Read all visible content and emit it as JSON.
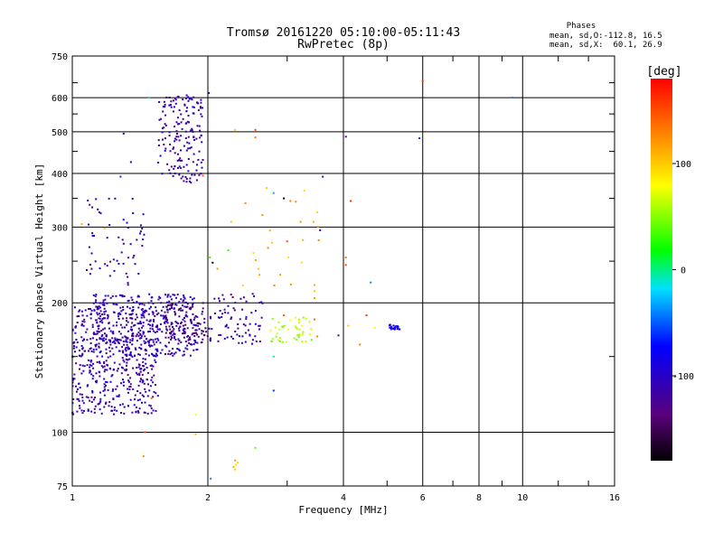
{
  "chart_data": {
    "type": "scatter",
    "title": "Tromsø 20161220 05:10:00-05:11:43",
    "subtitle": "RwPretec (8p)",
    "xlabel": "Frequency [MHz]",
    "ylabel": "Stationary phase Virtual Height [km]",
    "x_scale": "log",
    "y_scale": "log",
    "xlim": [
      1,
      16
    ],
    "ylim": [
      75,
      750
    ],
    "x_ticks": [
      1,
      2,
      4,
      6,
      8,
      10,
      16
    ],
    "y_ticks": [
      75,
      100,
      200,
      300,
      400,
      500,
      600,
      750
    ],
    "phases": {
      "heading": "Phases",
      "line1": "mean, sd,O:-112.8, 16.5",
      "line2": "mean, sd,X:  60.1, 26.9"
    },
    "colorbar": {
      "label": "[deg]",
      "ticks": [
        100,
        0,
        -100
      ],
      "range": [
        -180,
        180
      ]
    },
    "clusters": [
      {
        "x": [
          1.0,
          1.55
        ],
        "y": [
          110,
          200
        ],
        "phase": -112,
        "n": 520
      },
      {
        "x": [
          1.1,
          1.9
        ],
        "y": [
          150,
          210
        ],
        "phase": -105,
        "n": 320
      },
      {
        "x": [
          1.55,
          1.95
        ],
        "y": [
          380,
          610
        ],
        "phase": -110,
        "n": 170
      },
      {
        "x": [
          1.6,
          2.0
        ],
        "y": [
          160,
          200
        ],
        "phase": -135,
        "n": 110
      },
      {
        "x": [
          1.05,
          1.45
        ],
        "y": [
          220,
          350
        ],
        "phase": -110,
        "n": 60
      },
      {
        "x": [
          2.0,
          2.65
        ],
        "y": [
          160,
          210
        ],
        "phase": -115,
        "n": 80
      },
      {
        "x": [
          5.05,
          5.35
        ],
        "y": [
          173,
          178
        ],
        "phase": -85,
        "n": 24
      },
      {
        "x": [
          2.75,
          3.4
        ],
        "y": [
          162,
          185
        ],
        "phase": 60,
        "n": 45
      },
      {
        "x": [
          2.25,
          3.6
        ],
        "y": [
          210,
          380
        ],
        "phase": 110,
        "n": 22
      }
    ],
    "points": [
      {
        "x": 1.48,
        "y": 600,
        "phase": 0
      },
      {
        "x": 2.01,
        "y": 615,
        "phase": -120
      },
      {
        "x": 1.95,
        "y": 430,
        "phase": -130
      },
      {
        "x": 1.3,
        "y": 495,
        "phase": -120
      },
      {
        "x": 1.28,
        "y": 393,
        "phase": -60
      },
      {
        "x": 1.35,
        "y": 425,
        "phase": -110
      },
      {
        "x": 1.05,
        "y": 305,
        "phase": 110
      },
      {
        "x": 1.18,
        "y": 298,
        "phase": 110
      },
      {
        "x": 1.95,
        "y": 395,
        "phase": 150
      },
      {
        "x": 2.55,
        "y": 505,
        "phase": 150
      },
      {
        "x": 2.55,
        "y": 485,
        "phase": 130
      },
      {
        "x": 2.3,
        "y": 505,
        "phase": 100
      },
      {
        "x": 2.7,
        "y": 370,
        "phase": 100
      },
      {
        "x": 2.8,
        "y": 360,
        "phase": -30
      },
      {
        "x": 2.95,
        "y": 350,
        "phase": -180
      },
      {
        "x": 3.05,
        "y": 345,
        "phase": 130
      },
      {
        "x": 3.6,
        "y": 393,
        "phase": -120
      },
      {
        "x": 3.5,
        "y": 325,
        "phase": 100
      },
      {
        "x": 3.55,
        "y": 295,
        "phase": -100
      },
      {
        "x": 3.0,
        "y": 278,
        "phase": 150
      },
      {
        "x": 3.25,
        "y": 280,
        "phase": 110
      },
      {
        "x": 2.22,
        "y": 265,
        "phase": 30
      },
      {
        "x": 2.05,
        "y": 248,
        "phase": -180
      },
      {
        "x": 2.02,
        "y": 255,
        "phase": 30
      },
      {
        "x": 2.1,
        "y": 240,
        "phase": 120
      },
      {
        "x": 4.05,
        "y": 487,
        "phase": -130
      },
      {
        "x": 4.15,
        "y": 345,
        "phase": 160
      },
      {
        "x": 4.05,
        "y": 255,
        "phase": 130
      },
      {
        "x": 4.05,
        "y": 245,
        "phase": 150
      },
      {
        "x": 4.6,
        "y": 223,
        "phase": -40
      },
      {
        "x": 4.5,
        "y": 187,
        "phase": 160
      },
      {
        "x": 4.1,
        "y": 177,
        "phase": 100
      },
      {
        "x": 3.9,
        "y": 168,
        "phase": -120
      },
      {
        "x": 4.35,
        "y": 160,
        "phase": 130
      },
      {
        "x": 4.7,
        "y": 175,
        "phase": 80
      },
      {
        "x": 5.9,
        "y": 483,
        "phase": -60
      },
      {
        "x": 6.0,
        "y": 655,
        "phase": 160
      },
      {
        "x": 9.5,
        "y": 600,
        "phase": -40
      },
      {
        "x": 3.45,
        "y": 220,
        "phase": 110
      },
      {
        "x": 3.45,
        "y": 213,
        "phase": 100
      },
      {
        "x": 3.45,
        "y": 205,
        "phase": 120
      },
      {
        "x": 2.95,
        "y": 187,
        "phase": 150
      },
      {
        "x": 3.45,
        "y": 183,
        "phase": 140
      },
      {
        "x": 3.5,
        "y": 167,
        "phase": 130
      },
      {
        "x": 2.8,
        "y": 150,
        "phase": 0
      },
      {
        "x": 2.8,
        "y": 125,
        "phase": -60
      },
      {
        "x": 1.5,
        "y": 120,
        "phase": 140
      },
      {
        "x": 1.45,
        "y": 100,
        "phase": 150
      },
      {
        "x": 1.44,
        "y": 88,
        "phase": 120
      },
      {
        "x": 1.88,
        "y": 99,
        "phase": 110
      },
      {
        "x": 2.03,
        "y": 78,
        "phase": -40
      },
      {
        "x": 2.3,
        "y": 82,
        "phase": 100
      },
      {
        "x": 2.31,
        "y": 84,
        "phase": 90
      },
      {
        "x": 2.28,
        "y": 83,
        "phase": 110
      },
      {
        "x": 2.33,
        "y": 85,
        "phase": 95
      },
      {
        "x": 2.3,
        "y": 86,
        "phase": 120
      },
      {
        "x": 2.55,
        "y": 92,
        "phase": 40
      },
      {
        "x": 1.88,
        "y": 110,
        "phase": 80
      }
    ]
  }
}
